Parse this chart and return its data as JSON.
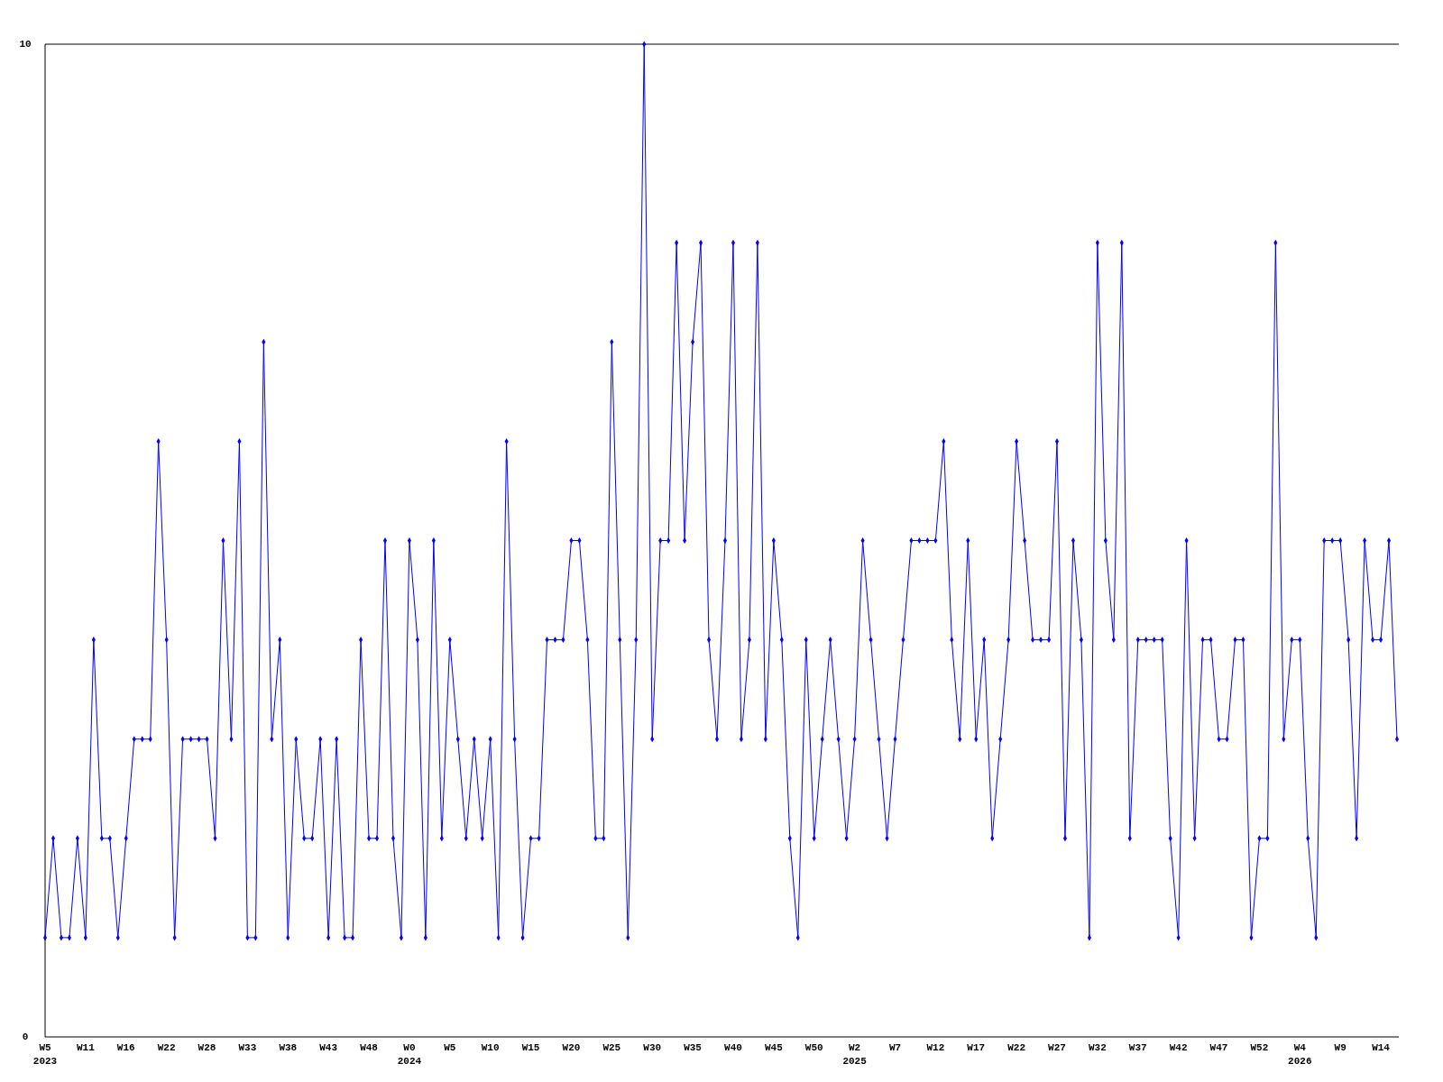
{
  "chart_data": {
    "type": "line",
    "categories": [
      "W5\n2023",
      null,
      null,
      null,
      null,
      "W11",
      null,
      null,
      null,
      null,
      "W16",
      null,
      null,
      null,
      null,
      "W22",
      null,
      null,
      null,
      null,
      "W28",
      null,
      null,
      null,
      null,
      "W33",
      null,
      null,
      null,
      null,
      "W38",
      null,
      null,
      null,
      null,
      "W43",
      null,
      null,
      null,
      null,
      "W48",
      null,
      null,
      null,
      null,
      "W0\n2024",
      null,
      null,
      null,
      null,
      "W5",
      null,
      null,
      null,
      null,
      "W10",
      null,
      null,
      null,
      null,
      "W15",
      null,
      null,
      null,
      null,
      "W20",
      null,
      null,
      null,
      null,
      "W25",
      null,
      null,
      null,
      null,
      "W30",
      null,
      null,
      null,
      null,
      "W35",
      null,
      null,
      null,
      null,
      "W40",
      null,
      null,
      null,
      null,
      "W45",
      null,
      null,
      null,
      null,
      "W50",
      null,
      null,
      null,
      null,
      "W2\n2025",
      null,
      null,
      null,
      null,
      "W7",
      null,
      null,
      null,
      null,
      "W12",
      null,
      null,
      null,
      null,
      "W17",
      null,
      null,
      null,
      null,
      "W22",
      null,
      null,
      null,
      null,
      "W27",
      null,
      null,
      null,
      null,
      "W32",
      null,
      null,
      null,
      null,
      "W37",
      null,
      null,
      null,
      null,
      "W42",
      null,
      null,
      null,
      null,
      "W47",
      null,
      null,
      null,
      null,
      "W52",
      null,
      null,
      null,
      null,
      "W4\n2026",
      null,
      null,
      null,
      null,
      "W9",
      null,
      null,
      null,
      null,
      "W14",
      null,
      null
    ],
    "series": [
      {
        "color": "#0000ff",
        "values": [
          1,
          2,
          1,
          1,
          2,
          1,
          4,
          2,
          2,
          1,
          2,
          3,
          3,
          3,
          6,
          4,
          1,
          3,
          3,
          3,
          3,
          2,
          5,
          3,
          6,
          1,
          1,
          7,
          3,
          4,
          1,
          3,
          2,
          2,
          3,
          1,
          3,
          1,
          1,
          4,
          2,
          2,
          5,
          2,
          1,
          5,
          4,
          1,
          5,
          2,
          4,
          3,
          2,
          3,
          2,
          3,
          1,
          6,
          3,
          1,
          2,
          2,
          4,
          4,
          4,
          5,
          5,
          4,
          2,
          2,
          7,
          4,
          1,
          4,
          10,
          3,
          5,
          5,
          8,
          5,
          7,
          8,
          4,
          3,
          5,
          8,
          3,
          4,
          8,
          3,
          5,
          4,
          2,
          1,
          4,
          2,
          3,
          4,
          3,
          2,
          3,
          5,
          4,
          3,
          2,
          3,
          4,
          5,
          5,
          5,
          5,
          6,
          4,
          3,
          5,
          3,
          4,
          2,
          3,
          4,
          6,
          5,
          4,
          4,
          4,
          6,
          2,
          5,
          4,
          1,
          8,
          5,
          4,
          8,
          2,
          4,
          4,
          4,
          4,
          2,
          1,
          5,
          2,
          4,
          4,
          3,
          3,
          4,
          4,
          1,
          2,
          2,
          8,
          3,
          4,
          4,
          2,
          1,
          5,
          5,
          5,
          4,
          2,
          5,
          4,
          4,
          5,
          3
        ]
      }
    ],
    "ylim": [
      0,
      10
    ],
    "yticks": [
      0,
      10
    ],
    "marker": "diamond",
    "line_style": "solid"
  }
}
